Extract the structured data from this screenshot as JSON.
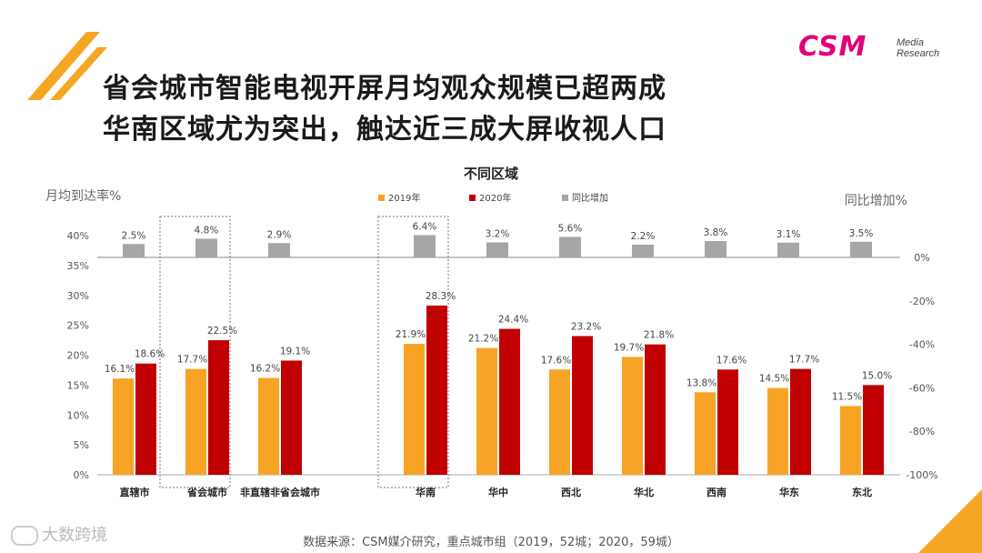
{
  "slide": {
    "title_line1": "省会城市智能电视开屏月均观众规模已超两成",
    "title_line2": "华南区域尤为突出，触达近三成大屏收视人口",
    "source": "数据来源：CSM媒介研究，重点城市组（2019，52城；2020，59城）",
    "watermark": "大数跨境",
    "logo_text": "CSM",
    "logo_sub1": "Media",
    "logo_sub2": "Research"
  },
  "colors": {
    "accent_orange": "#f5a623",
    "series_2019": "#f7a325",
    "series_2020": "#c00000",
    "series_yoy": "#a6a6a6",
    "logo": "#e2007a"
  },
  "chart_data": {
    "type": "bar",
    "title": "不同区域",
    "ylabel": "月均到达率%",
    "y2label": "同比增加%",
    "categories": [
      "直辖市",
      "省会城市",
      "非直辖非省会城市",
      "华南",
      "华中",
      "西北",
      "华北",
      "西南",
      "华东",
      "东北"
    ],
    "series": [
      {
        "name": "2019年",
        "axis": "left",
        "values": [
          16.1,
          17.7,
          16.2,
          21.9,
          21.2,
          17.6,
          19.7,
          13.8,
          14.5,
          11.5
        ],
        "labels": [
          "16.1%",
          "17.7%",
          "16.2%",
          "21.9%",
          "21.2%",
          "17.6%",
          "19.7%",
          "13.8%",
          "14.5%",
          "11.5%"
        ]
      },
      {
        "name": "2020年",
        "axis": "left",
        "values": [
          18.6,
          22.5,
          19.1,
          28.3,
          24.4,
          23.2,
          21.8,
          17.6,
          17.7,
          15.0
        ],
        "labels": [
          "18.6%",
          "22.5%",
          "19.1%",
          "28.3%",
          "24.4%",
          "23.2%",
          "21.8%",
          "17.6%",
          "17.7%",
          "15.0%"
        ]
      },
      {
        "name": "同比增加",
        "axis": "right",
        "values": [
          2.5,
          4.8,
          2.9,
          6.4,
          3.2,
          5.6,
          2.2,
          3.8,
          3.1,
          3.5
        ],
        "labels": [
          "2.5%",
          "4.8%",
          "2.9%",
          "6.4%",
          "3.2%",
          "5.6%",
          "2.2%",
          "3.8%",
          "3.1%",
          "3.5%"
        ]
      }
    ],
    "ylim": [
      0,
      40
    ],
    "yticks": [
      "0%",
      "5%",
      "10%",
      "15%",
      "20%",
      "25%",
      "30%",
      "35%",
      "40%"
    ],
    "y2lim": [
      -100,
      0
    ],
    "y2ticks": [
      "-100%",
      "-80%",
      "-60%",
      "-40%",
      "-20%",
      "0%"
    ],
    "legend_position": "top-center",
    "highlighted_categories": [
      "省会城市",
      "华南"
    ],
    "grid": false
  }
}
